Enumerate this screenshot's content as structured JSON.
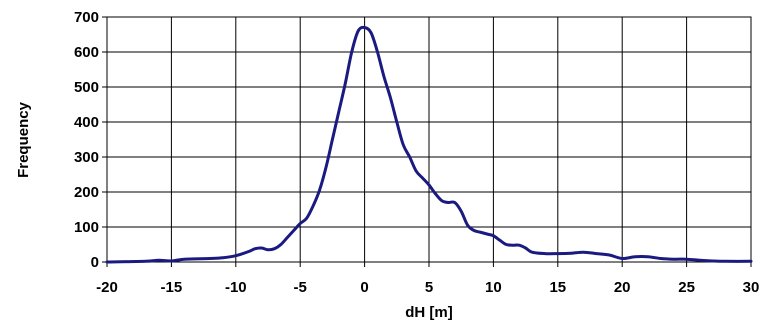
{
  "chart_data": {
    "type": "line",
    "title": "",
    "xlabel": "dH [m]",
    "ylabel": "Frequency",
    "xlim": [
      -20,
      30
    ],
    "ylim": [
      0,
      700
    ],
    "xticks": [
      "-20",
      "-15",
      "-10",
      "-5",
      "0",
      "5",
      "10",
      "15",
      "20",
      "25",
      "30"
    ],
    "yticks": [
      "0",
      "100",
      "200",
      "300",
      "400",
      "500",
      "600",
      "700"
    ],
    "grid": true,
    "line_color": "#1a1a80",
    "series": [
      {
        "x": [
          -20,
          -17,
          -16,
          -15,
          -14,
          -12,
          -11,
          -10,
          -9,
          -8.5,
          -8,
          -7.5,
          -7,
          -6.5,
          -6,
          -5.5,
          -5,
          -4.5,
          -4,
          -3.5,
          -3,
          -2.5,
          -2,
          -1.5,
          -1,
          -0.5,
          0,
          0.5,
          1,
          1.5,
          2,
          2.5,
          3,
          3.5,
          4,
          4.5,
          5,
          5.5,
          6,
          6.5,
          7,
          7.5,
          8,
          8.5,
          9,
          9.5,
          10,
          10.5,
          11,
          11.5,
          12,
          12.5,
          13,
          14,
          15,
          16,
          17,
          18,
          19,
          20,
          21,
          22,
          23,
          24,
          25,
          26,
          27,
          28,
          30
        ],
        "y": [
          0,
          2,
          5,
          3,
          8,
          10,
          12,
          18,
          30,
          38,
          40,
          35,
          38,
          50,
          70,
          90,
          110,
          125,
          160,
          205,
          270,
          350,
          430,
          510,
          600,
          660,
          670,
          655,
          600,
          530,
          470,
          400,
          335,
          300,
          260,
          240,
          220,
          195,
          175,
          170,
          170,
          145,
          105,
          90,
          85,
          80,
          75,
          62,
          50,
          48,
          48,
          40,
          28,
          24,
          24,
          25,
          28,
          24,
          20,
          10,
          15,
          15,
          10,
          8,
          8,
          5,
          3,
          2,
          2
        ]
      }
    ]
  }
}
